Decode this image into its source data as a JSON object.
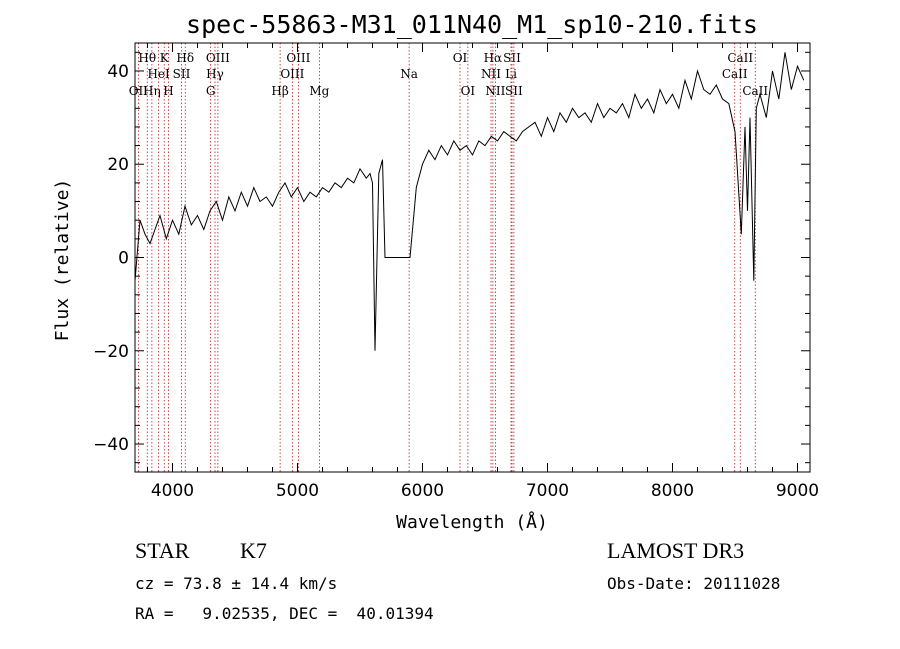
{
  "chart_data": {
    "type": "line",
    "title": "spec-55863-M31_011N40_M1_sp10-210.fits",
    "xlabel": "Wavelength (Å)",
    "ylabel": "Flux (relative)",
    "xlim": [
      3700,
      9100
    ],
    "ylim": [
      -46,
      46
    ],
    "xticks": [
      4000,
      5000,
      6000,
      7000,
      8000,
      9000
    ],
    "xtick_labels": [
      "4000",
      "5000",
      "6000",
      "7000",
      "8000",
      "9000"
    ],
    "yticks": [
      -40,
      -20,
      0,
      20,
      40
    ],
    "ytick_labels": [
      "−40",
      "−20",
      "0",
      "20",
      "40"
    ],
    "line_markers": [
      {
        "name": "OII",
        "wavelength": 3727,
        "row": 3
      },
      {
        "name": "Hθ",
        "wavelength": 3798,
        "row": 1
      },
      {
        "name": "Hη",
        "wavelength": 3835,
        "row": 3
      },
      {
        "name": "HeI",
        "wavelength": 3889,
        "row": 2
      },
      {
        "name": "K",
        "wavelength": 3934,
        "row": 1
      },
      {
        "name": "H",
        "wavelength": 3968,
        "row": 3
      },
      {
        "name": "Hδ",
        "wavelength": 4102,
        "row": 1
      },
      {
        "name": "SII",
        "wavelength": 4072,
        "row": 2
      },
      {
        "name": "OIII",
        "wavelength": 4363,
        "row": 1
      },
      {
        "name": "Hγ",
        "wavelength": 4340,
        "row": 2
      },
      {
        "name": "G",
        "wavelength": 4305,
        "row": 3
      },
      {
        "name": "Hβ",
        "wavelength": 4861,
        "row": 3
      },
      {
        "name": "OIII",
        "wavelength": 5007,
        "row": 1
      },
      {
        "name": "OIII",
        "wavelength": 4959,
        "row": 2
      },
      {
        "name": "Mg",
        "wavelength": 5175,
        "row": 3
      },
      {
        "name": "Na",
        "wavelength": 5893,
        "row": 2
      },
      {
        "name": "OI",
        "wavelength": 6300,
        "row": 1
      },
      {
        "name": "OI",
        "wavelength": 6363,
        "row": 3
      },
      {
        "name": "Hα",
        "wavelength": 6563,
        "row": 1
      },
      {
        "name": "NII",
        "wavelength": 6548,
        "row": 2
      },
      {
        "name": "NII",
        "wavelength": 6583,
        "row": 3
      },
      {
        "name": "SII",
        "wavelength": 6716,
        "row": 1
      },
      {
        "name": "Li",
        "wavelength": 6708,
        "row": 2
      },
      {
        "name": "SII",
        "wavelength": 6731,
        "row": 3
      },
      {
        "name": "CaII",
        "wavelength": 8542,
        "row": 1
      },
      {
        "name": "CaII",
        "wavelength": 8498,
        "row": 2
      },
      {
        "name": "CaII",
        "wavelength": 8662,
        "row": 3
      }
    ],
    "series": [
      {
        "name": "flux",
        "x": [
          3700,
          3740,
          3780,
          3820,
          3860,
          3900,
          3950,
          4000,
          4050,
          4100,
          4150,
          4200,
          4250,
          4300,
          4350,
          4400,
          4450,
          4500,
          4550,
          4600,
          4650,
          4700,
          4750,
          4800,
          4850,
          4900,
          4950,
          5000,
          5050,
          5100,
          5150,
          5200,
          5250,
          5300,
          5350,
          5400,
          5450,
          5500,
          5550,
          5580,
          5600,
          5620,
          5650,
          5680,
          5700,
          5720,
          5760,
          5800,
          5850,
          5900,
          5950,
          5960,
          5980,
          6000,
          6050,
          6100,
          6150,
          6200,
          6250,
          6300,
          6350,
          6400,
          6450,
          6500,
          6550,
          6600,
          6650,
          6700,
          6750,
          6800,
          6850,
          6900,
          6950,
          7000,
          7050,
          7100,
          7150,
          7200,
          7250,
          7300,
          7350,
          7400,
          7450,
          7500,
          7550,
          7600,
          7650,
          7700,
          7750,
          7800,
          7850,
          7900,
          7950,
          8000,
          8050,
          8100,
          8150,
          8200,
          8250,
          8300,
          8350,
          8400,
          8450,
          8500,
          8550,
          8580,
          8600,
          8620,
          8650,
          8670,
          8700,
          8750,
          8800,
          8850,
          8900,
          8950,
          9000,
          9050
        ],
        "y": [
          -5,
          8,
          5,
          3,
          6,
          9,
          4,
          8,
          5,
          11,
          7,
          9,
          6,
          10,
          12,
          8,
          13,
          10,
          14,
          11,
          15,
          12,
          13,
          11,
          14,
          16,
          13,
          15,
          12,
          14,
          13,
          15,
          14,
          16,
          15,
          17,
          16,
          19,
          17,
          18,
          16,
          -20,
          18,
          21,
          0,
          0,
          0,
          0,
          0,
          0,
          15,
          16,
          18,
          20,
          23,
          21,
          24,
          22,
          25,
          23,
          24,
          22,
          25,
          24,
          26,
          25,
          27,
          26,
          25,
          27,
          28,
          29,
          26,
          30,
          27,
          31,
          29,
          32,
          30,
          31,
          29,
          33,
          30,
          32,
          31,
          33,
          30,
          35,
          32,
          34,
          31,
          36,
          33,
          35,
          32,
          38,
          34,
          40,
          36,
          35,
          37,
          34,
          33,
          27,
          5,
          28,
          10,
          30,
          -5,
          32,
          35,
          30,
          40,
          34,
          44,
          36,
          41,
          38
        ]
      }
    ]
  },
  "info": {
    "object_type": "STAR",
    "spectral_class": "K7",
    "survey": "LAMOST DR3",
    "cz_line": "cz = 73.8 ± 14.4 km/s",
    "obs_date": "Obs-Date: 20111028",
    "coords": "RA =   9.02535, DEC =  40.01394"
  }
}
